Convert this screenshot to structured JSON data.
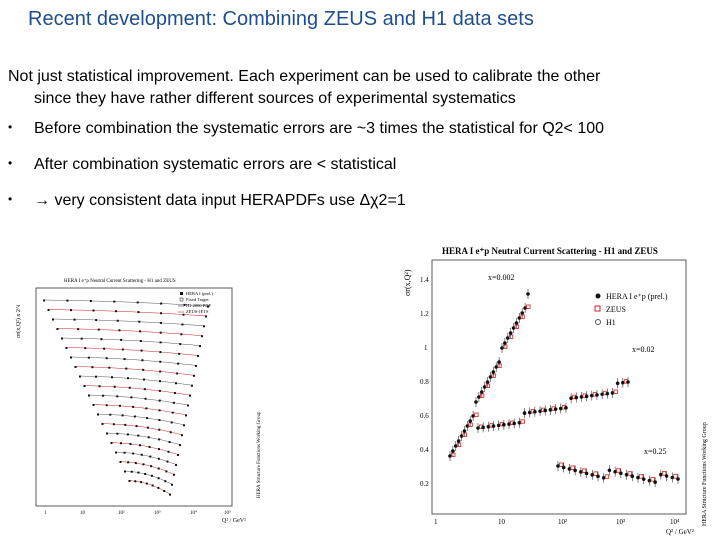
{
  "slide": {
    "title": "Recent development: Combining ZEUS and H1 data sets",
    "intro_line1": "Not just statistical improvement. Each experiment can be used to calibrate the other",
    "intro_line2": "since they have rather different sources of experimental systematics",
    "bullets": [
      {
        "marker": "•",
        "text": "Before combination the systematic errors are ~3 times the statistical for Q2< 100"
      },
      {
        "marker": "•",
        "text": "After combination systematic errors are < statistical"
      },
      {
        "marker": "•",
        "text": "→ very consistent data input HERAPDFs use Δχ2=1"
      }
    ]
  },
  "left_figure": {
    "title": "HERA I e⁺p Neutral Current Scattering - H1 and ZEUS",
    "legend": [
      "HERA I (prel.)",
      "Fixed Target",
      "H1 2000 PDF",
      "ZEUS-JETS"
    ],
    "ylabel": "σr(x,Q²) x 2^i",
    "xlabel": "Q² / GeV²",
    "xticks": [
      "1",
      "10",
      "10²",
      "10³",
      "10⁴",
      "10⁵"
    ],
    "side_text": "HERA Structure Functions Working Group"
  },
  "right_figure": {
    "title": "HERA I e⁺p Neutral Current Scattering - H1 and ZEUS",
    "ylabel": "σr(x,Q²)",
    "xlabel": "Q² / GeV²",
    "yticks": [
      "1.4",
      "1.2",
      "1",
      "0.8",
      "0.6",
      "0.4",
      "0.2"
    ],
    "xticks": [
      "1",
      "10",
      "10²",
      "10³",
      "10⁴"
    ],
    "x_labels": [
      "x=0.002",
      "x=0.02",
      "x=0.25"
    ],
    "legend": [
      "HERA I e⁺p (prel.)",
      "ZEUS",
      "H1"
    ],
    "side_text": "HERA Structure Functions Working Group"
  },
  "colors": {
    "title": "#1f4e8c",
    "zeus": "#cc2222",
    "hera": "#111111"
  }
}
